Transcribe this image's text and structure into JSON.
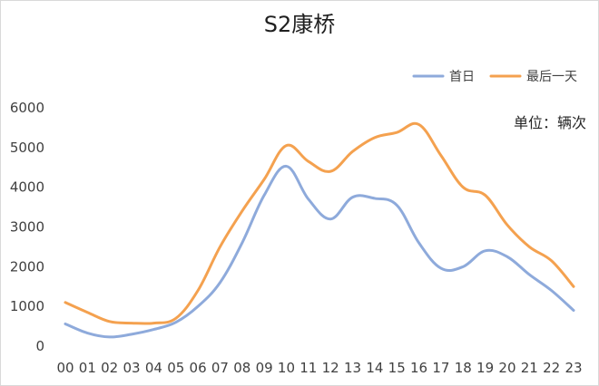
{
  "chart_data": {
    "type": "line",
    "title": "S2康桥",
    "unit_label": "单位：辆次",
    "xlabel": "",
    "ylabel": "",
    "categories": [
      "00",
      "01",
      "02",
      "03",
      "04",
      "05",
      "06",
      "07",
      "08",
      "09",
      "10",
      "11",
      "12",
      "13",
      "14",
      "15",
      "16",
      "17",
      "18",
      "19",
      "20",
      "21",
      "22",
      "23"
    ],
    "ylim": [
      0,
      6000
    ],
    "yticks": [
      "0",
      "1000",
      "2000",
      "3000",
      "4000",
      "5000",
      "6000"
    ],
    "grid": false,
    "legend_position": "top-right",
    "series": [
      {
        "name": "首日",
        "color": "#8eaadb",
        "values": [
          560,
          330,
          230,
          300,
          420,
          600,
          1000,
          1600,
          2600,
          3800,
          4530,
          3700,
          3200,
          3750,
          3720,
          3550,
          2600,
          1960,
          2000,
          2400,
          2250,
          1800,
          1400,
          900
        ]
      },
      {
        "name": "最后一天",
        "color": "#f4a14f",
        "values": [
          1100,
          850,
          620,
          580,
          580,
          700,
          1400,
          2500,
          3400,
          4200,
          5050,
          4650,
          4400,
          4900,
          5250,
          5380,
          5580,
          4800,
          4000,
          3800,
          3050,
          2500,
          2150,
          1500
        ]
      }
    ]
  }
}
